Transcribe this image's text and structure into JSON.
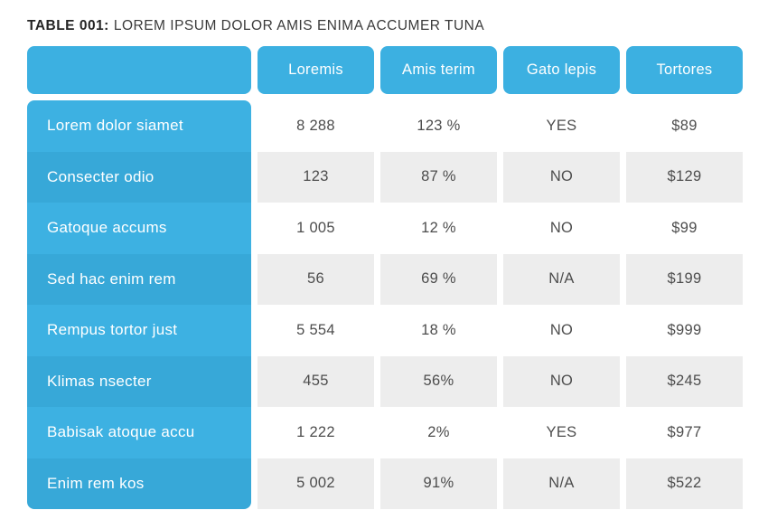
{
  "title": {
    "prefix": "TABLE 001:",
    "text": "LOREM IPSUM DOLOR AMIS ENIMA ACCUMER TUNA"
  },
  "colors": {
    "header_blue": "#3cb0e1",
    "label_blue_light": "#3db1e2",
    "label_blue_dark": "#37a8d8",
    "row_gray": "#ededed",
    "value_text": "#4d4d4d",
    "header_text": "#ffffff",
    "title_text": "#3a3a3a"
  },
  "table": {
    "columns": [
      "",
      "Loremis",
      "Amis terim",
      "Gato lepis",
      "Tortores"
    ],
    "rows": [
      {
        "label": "Lorem dolor siamet",
        "values": [
          "8 288",
          "123 %",
          "YES",
          "$89"
        ]
      },
      {
        "label": "Consecter odio",
        "values": [
          "123",
          "87 %",
          "NO",
          "$129"
        ]
      },
      {
        "label": "Gatoque accums",
        "values": [
          "1 005",
          "12 %",
          "NO",
          "$99"
        ]
      },
      {
        "label": "Sed hac enim rem",
        "values": [
          "56",
          "69 %",
          "N/A",
          "$199"
        ]
      },
      {
        "label": "Rempus tortor just",
        "values": [
          "5 554",
          "18 %",
          "NO",
          "$999"
        ]
      },
      {
        "label": "Klimas nsecter",
        "values": [
          "455",
          "56%",
          "NO",
          "$245"
        ]
      },
      {
        "label": "Babisak atoque accu",
        "values": [
          "1 222",
          "2%",
          "YES",
          "$977"
        ]
      },
      {
        "label": "Enim rem kos",
        "values": [
          "5 002",
          "91%",
          "N/A",
          "$522"
        ]
      }
    ]
  },
  "chart_data": {
    "type": "table",
    "title": "TABLE 001: LOREM IPSUM DOLOR AMIS ENIMA ACCUMER TUNA",
    "columns": [
      "",
      "Loremis",
      "Amis terim",
      "Gato lepis",
      "Tortores"
    ],
    "rows": [
      [
        "Lorem dolor siamet",
        "8 288",
        "123 %",
        "YES",
        "$89"
      ],
      [
        "Consecter odio",
        "123",
        "87 %",
        "NO",
        "$129"
      ],
      [
        "Gatoque accums",
        "1 005",
        "12 %",
        "NO",
        "$99"
      ],
      [
        "Sed hac enim rem",
        "56",
        "69 %",
        "N/A",
        "$199"
      ],
      [
        "Rempus tortor just",
        "5 554",
        "18 %",
        "NO",
        "$999"
      ],
      [
        "Klimas nsecter",
        "455",
        "56%",
        "NO",
        "$245"
      ],
      [
        "Babisak atoque accu",
        "1 222",
        "2%",
        "YES",
        "$977"
      ],
      [
        "Enim rem kos",
        "5 002",
        "91%",
        "N/A",
        "$522"
      ]
    ]
  }
}
